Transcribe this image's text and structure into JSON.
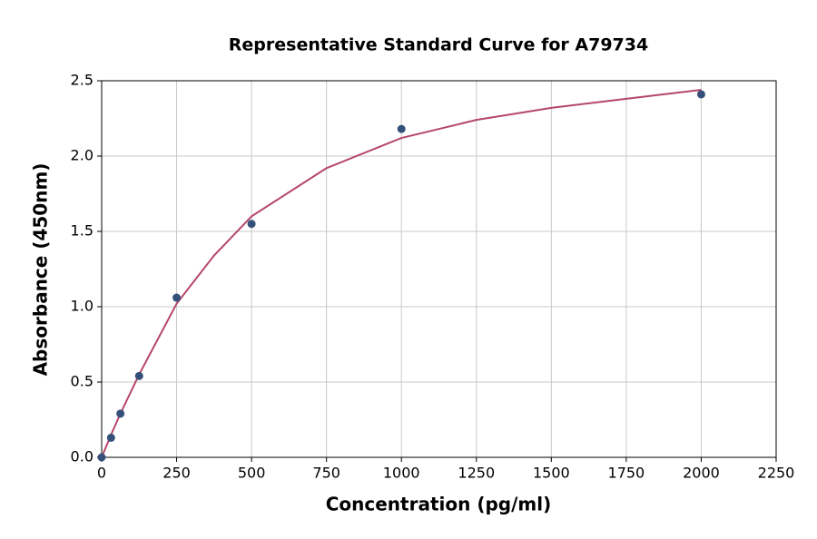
{
  "chart_data": {
    "type": "scatter",
    "title": "Representative Standard Curve for A79734",
    "xlabel": "Concentration (pg/ml)",
    "ylabel": "Absorbance (450nm)",
    "points": {
      "color": "#34507a",
      "x": [
        0,
        31.25,
        62.5,
        125,
        250,
        500,
        1000,
        2000
      ],
      "y": [
        0,
        0.13,
        0.29,
        0.54,
        1.06,
        1.55,
        2.18,
        2.41
      ]
    },
    "curve": {
      "color": "#b5466b",
      "x": [
        0,
        31.25,
        62.5,
        125,
        250,
        375,
        500,
        750,
        1000,
        1250,
        1500,
        1750,
        2000
      ],
      "y": [
        0,
        0.15,
        0.29,
        0.55,
        1.02,
        1.34,
        1.6,
        1.92,
        2.12,
        2.24,
        2.32,
        2.38,
        2.44
      ]
    },
    "xlim": [
      0,
      2250
    ],
    "ylim": [
      0,
      2.5
    ],
    "xticks": [
      0,
      250,
      500,
      750,
      1000,
      1250,
      1500,
      1750,
      2000,
      2250
    ],
    "yticks": [
      {
        "value": 0,
        "label": "0.0"
      },
      0.5,
      {
        "value": 1,
        "label": "1.0"
      },
      1.5,
      {
        "value": 2,
        "label": "2.0"
      },
      2.5
    ],
    "grid": true
  }
}
